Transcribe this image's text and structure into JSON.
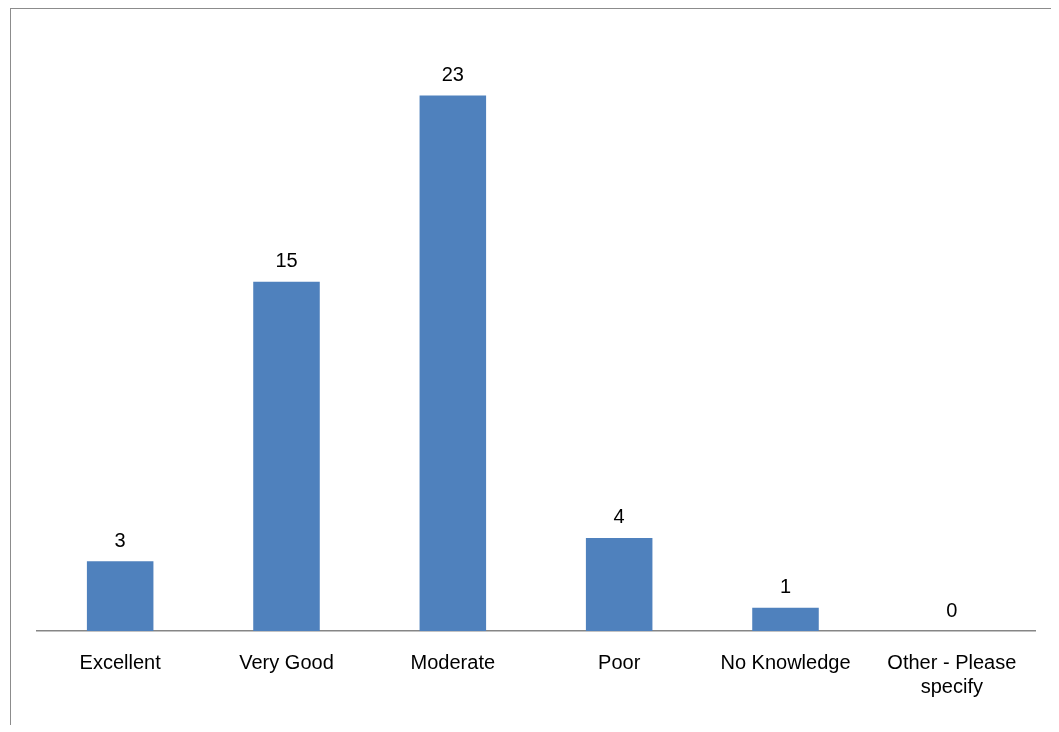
{
  "chart_data": {
    "type": "bar",
    "categories": [
      "Excellent",
      "Very Good",
      "Moderate",
      "Poor",
      "No Knowledge",
      "Other - Please specify"
    ],
    "values": [
      3,
      15,
      23,
      4,
      1,
      0
    ],
    "color": "#4f81bd",
    "data_labels": true,
    "grid": false,
    "legend": false
  }
}
